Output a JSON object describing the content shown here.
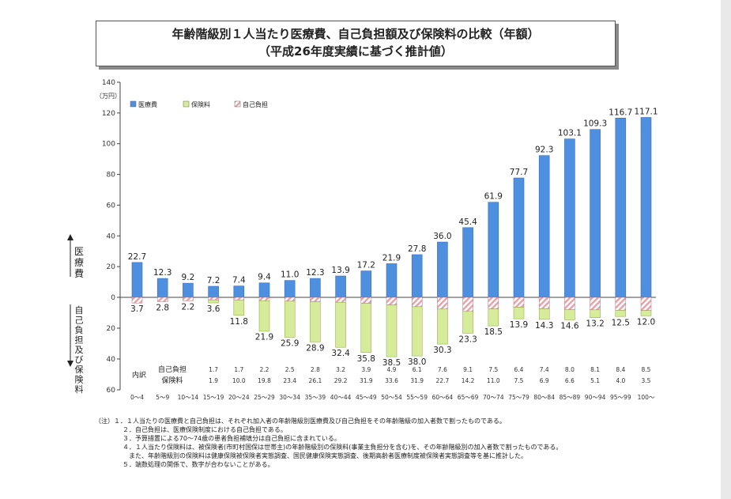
{
  "title": "年齢階級別１人当たり医療費、自己負担額及び保険料の比較（年額）",
  "subtitle": "（平成26年度実績に基づく推計値）",
  "chart_data": {
    "type": "bar",
    "unit_label": "（万円）",
    "y_axis_upper_label": "医療費",
    "y_axis_lower_label": "自己負担及び保険料",
    "y_upper_ticks": [
      "140",
      "120",
      "100",
      "80",
      "60",
      "40",
      "20",
      "0"
    ],
    "y_lower_ticks": [
      "20",
      "40",
      "60"
    ],
    "ylim_upper": [
      0,
      140
    ],
    "ylim_lower": [
      0,
      60
    ],
    "grid": false,
    "legend_placement": "top-left",
    "legend": [
      "医療費",
      "保険料",
      "自己負担"
    ],
    "categories": [
      "0～4",
      "5～9",
      "10～14",
      "15～19",
      "20～24",
      "25～29",
      "30～34",
      "35～39",
      "40～44",
      "45～49",
      "50～54",
      "55～59",
      "60～64",
      "65～69",
      "70～74",
      "75～79",
      "80～84",
      "85～89",
      "90～94",
      "95～99",
      "100～"
    ],
    "medical_labels": [
      "22.7",
      "12.3",
      "9.2",
      "7.2",
      "7.4",
      "9.4",
      "11.0",
      "12.3",
      "13.9",
      "17.2",
      "21.9",
      "27.8",
      "36.0",
      "45.4",
      "61.9",
      "77.7",
      "92.3",
      "103.1",
      "109.3",
      "116.7",
      "117.1"
    ],
    "medical": [
      22.7,
      12.3,
      9.2,
      7.2,
      7.4,
      9.4,
      11.0,
      12.3,
      13.9,
      17.2,
      21.9,
      27.8,
      36.0,
      45.4,
      61.9,
      77.7,
      92.3,
      103.1,
      109.3,
      116.7,
      117.1
    ],
    "lower_total_labels": [
      "3.7",
      "2.8",
      "2.2",
      "3.6",
      "11.8",
      "21.9",
      "25.9",
      "28.9",
      "32.4",
      "35.8",
      "38.5",
      "38.0",
      "30.3",
      "23.3",
      "18.5",
      "13.9",
      "14.3",
      "14.6",
      "13.2",
      "12.5",
      "12.0"
    ],
    "lower_total": [
      3.7,
      2.8,
      2.2,
      3.6,
      11.8,
      21.9,
      25.9,
      28.9,
      32.4,
      35.8,
      38.5,
      38.0,
      30.3,
      23.3,
      18.5,
      13.9,
      14.3,
      14.6,
      13.2,
      12.5,
      12.0
    ],
    "breakdown_label": "内訳",
    "self_pay_label": "自己負担",
    "premium_label": "保険料",
    "self_pay_labels": [
      "1.7",
      "1.7",
      "2.2",
      "2.5",
      "2.8",
      "3.2",
      "3.9",
      "4.9",
      "6.1",
      "7.6",
      "9.1",
      "7.5",
      "6.4",
      "7.4",
      "8.0",
      "8.1",
      "8.4",
      "8.5"
    ],
    "premium_labels": [
      "1.9",
      "10.0",
      "19.8",
      "23.4",
      "26.1",
      "29.2",
      "31.9",
      "33.6",
      "31.9",
      "22.7",
      "14.2",
      "11.0",
      "7.5",
      "6.9",
      "6.6",
      "5.1",
      "4.0",
      "3.5"
    ],
    "self_pay": [
      1.7,
      1.7,
      2.2,
      2.5,
      2.8,
      3.2,
      3.9,
      4.9,
      6.1,
      7.6,
      9.1,
      7.5,
      6.4,
      7.4,
      8.0,
      8.1,
      8.4,
      8.5
    ],
    "premium": [
      1.9,
      10.0,
      19.8,
      23.4,
      26.1,
      29.2,
      31.9,
      33.6,
      31.9,
      22.7,
      14.2,
      11.0,
      7.5,
      6.9,
      6.6,
      5.1,
      4.0,
      3.5
    ],
    "colors": {
      "medical": "#4f8fe0",
      "premium": "#d7ec9a",
      "self_pay": "#e8a0a8"
    }
  },
  "notes": [
    "（注）１．１人当たりの医療費と自己負担は、それぞれ加入者の年齢階級別医療費及び自己負担をその年齢階級の加入者数で割ったものである。",
    "２．自己負担は、医療保険制度における自己負担である。",
    "３．予算措置による70～74歳の患者負担補填分は自己負担に含まれている。",
    "４．１人当たり保険料は、被保険者(市町村国保は世帯主)の年齢階級別の保険料(事業主負担分を含む)を、その年齢階級別の加入者数で割ったものである。",
    "また、年齢階級別の保険料は健康保険被保険者実態調査、国民健康保険実態調査、後期高齢者医療制度被保険者実態調査等を基に推計した。",
    "５．端数処理の関係で、数字が合わないことがある。"
  ]
}
